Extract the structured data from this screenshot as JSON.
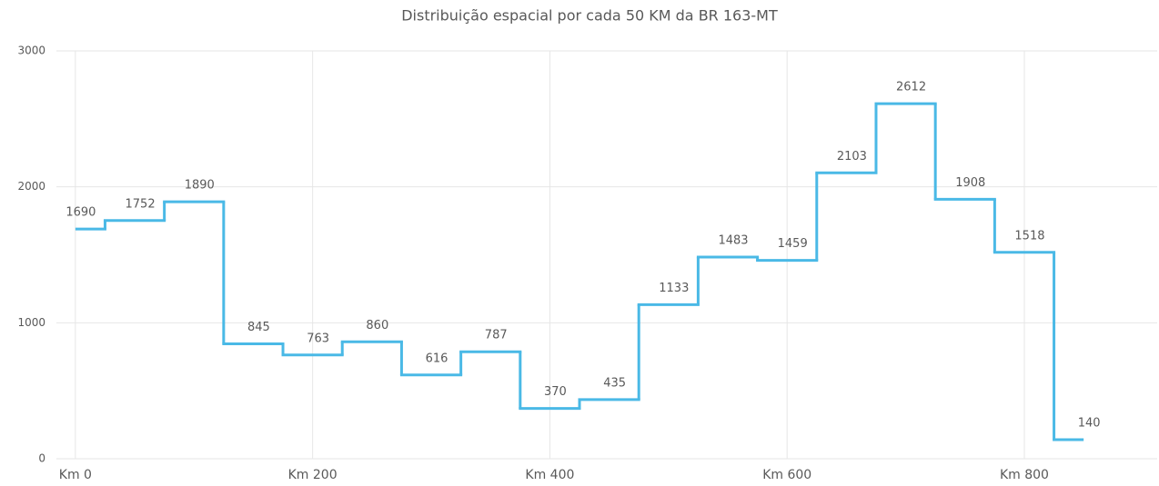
{
  "chart_data": {
    "type": "line",
    "step": "mid",
    "title": "Distribuição espacial por cada 50 KM da BR 163-MT",
    "x": [
      0,
      50,
      100,
      150,
      200,
      250,
      300,
      350,
      400,
      450,
      500,
      550,
      600,
      650,
      700,
      750,
      800,
      850
    ],
    "series": [
      {
        "name": "Distribuição",
        "color": "#4ab9e6",
        "values": [
          1690,
          1752,
          1890,
          845,
          763,
          860,
          616,
          787,
          370,
          435,
          1133,
          1483,
          1459,
          2103,
          2612,
          1908,
          1518,
          140
        ]
      }
    ],
    "xlim": [
      -16,
      912
    ],
    "xticks": [
      {
        "value": 0,
        "label": "Km 0"
      },
      {
        "value": 200,
        "label": "Km 200"
      },
      {
        "value": 400,
        "label": "Km 400"
      },
      {
        "value": 600,
        "label": "Km 600"
      },
      {
        "value": 800,
        "label": "Km 800"
      }
    ],
    "ylim": [
      0,
      3000
    ],
    "yticks": [
      0,
      1000,
      2000,
      3000
    ],
    "grid": true
  }
}
